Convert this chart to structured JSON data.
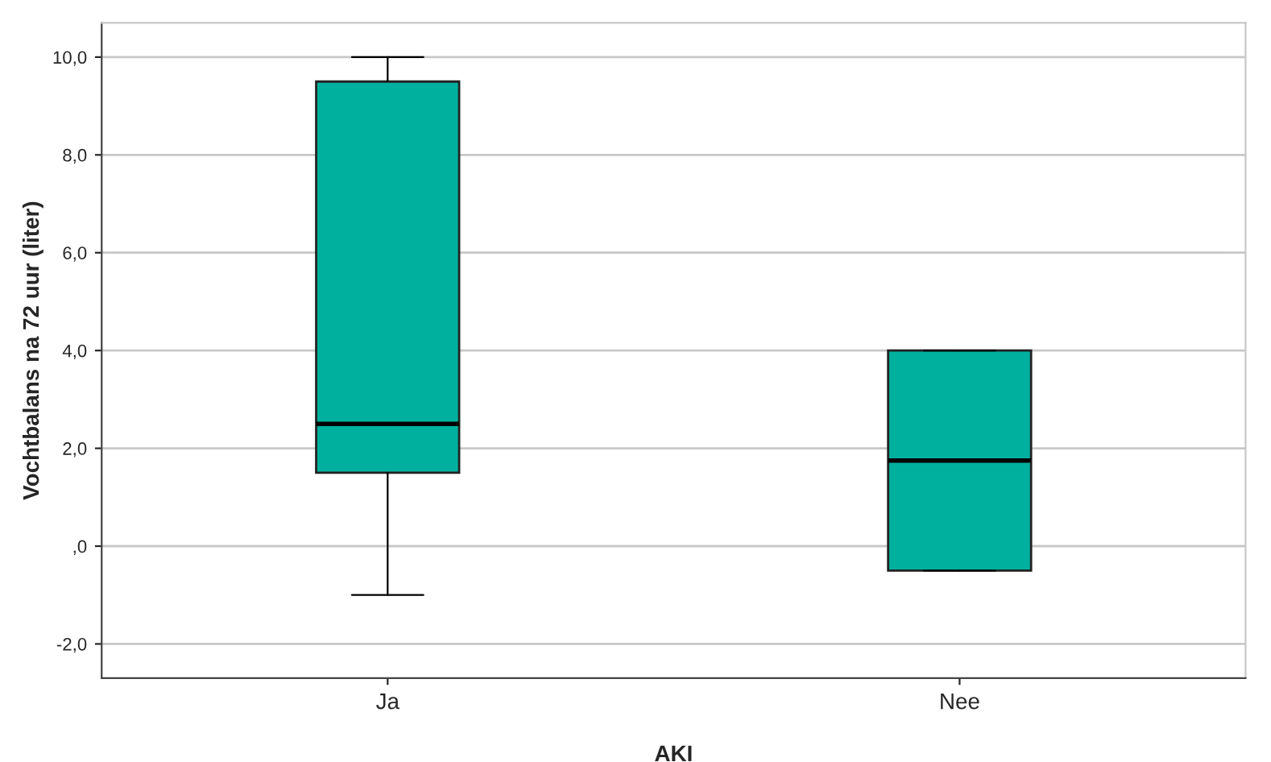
{
  "chart_data": {
    "type": "box",
    "xlabel": "AKI",
    "ylabel": "Vochtbalans na 72 uur (liter)",
    "categories": [
      "Ja",
      "Nee"
    ],
    "boxes": [
      {
        "low": -1.0,
        "q1": 1.5,
        "median": 2.5,
        "q3": 9.5,
        "high": 10.0
      },
      {
        "low": -0.5,
        "q1": -0.5,
        "median": 1.75,
        "q3": 4.0,
        "high": 4.0
      }
    ],
    "color": "#00b09e",
    "ylim": [
      -2.7,
      10.7
    ],
    "yticks": [
      {
        "value": -2,
        "label": "-2,0"
      },
      {
        "value": 0,
        "label": ",0"
      },
      {
        "value": 2,
        "label": "2,0"
      },
      {
        "value": 4,
        "label": "4,0"
      },
      {
        "value": 6,
        "label": "6,0"
      },
      {
        "value": 8,
        "label": "8,0"
      },
      {
        "value": 10,
        "label": "10,0"
      }
    ],
    "grid": "y"
  }
}
